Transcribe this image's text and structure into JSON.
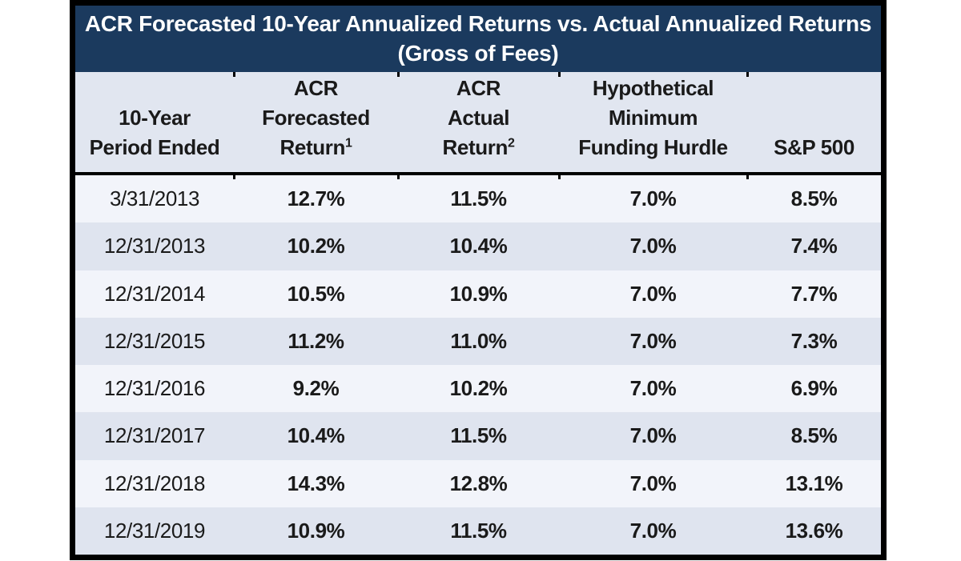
{
  "colors": {
    "title_bar": "#1B3A5E",
    "header_bg": "#E1E6F0",
    "row_odd": "#F2F4FA",
    "row_even": "#DFE4EF",
    "border": "#000000",
    "title_text": "#FFFFFF",
    "body_text": "#1A1A1A"
  },
  "chart_data": {
    "type": "table",
    "title": "ACR Forecasted 10-Year Annualized Returns vs. Actual Annualized Returns",
    "subtitle": "(Gross of Fees)",
    "columns": [
      {
        "id": "period",
        "lines": [
          "10-Year",
          "Period Ended"
        ],
        "sup": ""
      },
      {
        "id": "forecasted",
        "lines": [
          "ACR",
          "Forecasted",
          "Return"
        ],
        "sup": "1"
      },
      {
        "id": "actual",
        "lines": [
          "ACR",
          "Actual",
          "Return"
        ],
        "sup": "2"
      },
      {
        "id": "hurdle",
        "lines": [
          "Hypothetical",
          "Minimum",
          "Funding Hurdle"
        ],
        "sup": ""
      },
      {
        "id": "sp500",
        "lines": [
          "S&P 500"
        ],
        "sup": ""
      }
    ],
    "rows": [
      {
        "period": "3/31/2013",
        "forecasted": "12.7%",
        "actual": "11.5%",
        "hurdle": "7.0%",
        "sp500": "8.5%"
      },
      {
        "period": "12/31/2013",
        "forecasted": "10.2%",
        "actual": "10.4%",
        "hurdle": "7.0%",
        "sp500": "7.4%"
      },
      {
        "period": "12/31/2014",
        "forecasted": "10.5%",
        "actual": "10.9%",
        "hurdle": "7.0%",
        "sp500": "7.7%"
      },
      {
        "period": "12/31/2015",
        "forecasted": "11.2%",
        "actual": "11.0%",
        "hurdle": "7.0%",
        "sp500": "7.3%"
      },
      {
        "period": "12/31/2016",
        "forecasted": "9.2%",
        "actual": "10.2%",
        "hurdle": "7.0%",
        "sp500": "6.9%"
      },
      {
        "period": "12/31/2017",
        "forecasted": "10.4%",
        "actual": "11.5%",
        "hurdle": "7.0%",
        "sp500": "8.5%"
      },
      {
        "period": "12/31/2018",
        "forecasted": "14.3%",
        "actual": "12.8%",
        "hurdle": "7.0%",
        "sp500": "13.1%"
      },
      {
        "period": "12/31/2019",
        "forecasted": "10.9%",
        "actual": "11.5%",
        "hurdle": "7.0%",
        "sp500": "13.6%"
      }
    ]
  }
}
